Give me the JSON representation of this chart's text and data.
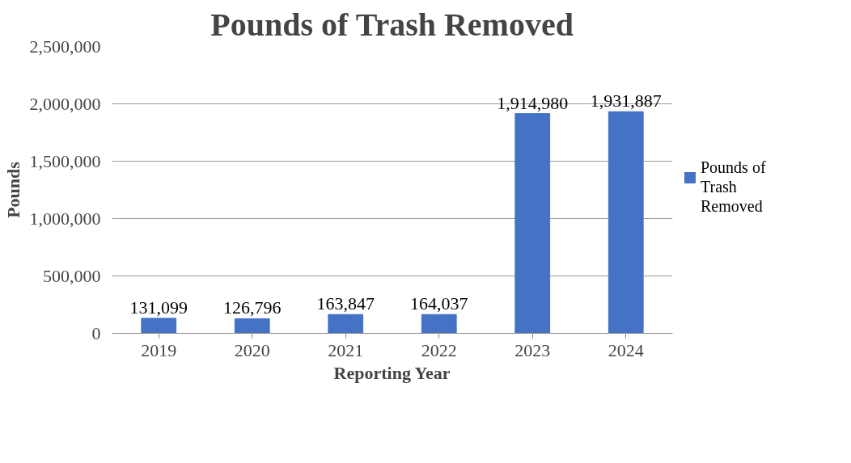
{
  "chart_data": {
    "type": "bar",
    "title": "Pounds of Trash Removed",
    "xlabel": "Reporting Year",
    "ylabel": "Pounds",
    "categories": [
      "2019",
      "2020",
      "2021",
      "2022",
      "2023",
      "2024"
    ],
    "series": [
      {
        "name": "Pounds of Trash Removed",
        "color": "#4472c4",
        "values": [
          131099,
          126796,
          163847,
          164037,
          1914980,
          1931887
        ]
      }
    ],
    "ylim": [
      0,
      2500000
    ],
    "yticks": [
      {
        "value": 0,
        "label": "0"
      },
      {
        "value": 500000,
        "label": "500,000"
      },
      {
        "value": 1000000,
        "label": "1,000,000"
      },
      {
        "value": 1500000,
        "label": "1,500,000"
      },
      {
        "value": 2000000,
        "label": "2,000,000"
      },
      {
        "value": 2500000,
        "label": "2,500,000"
      }
    ],
    "value_labels": [
      "131,099",
      "126,796",
      "163,847",
      "164,037",
      "1,914,980",
      "1,931,887"
    ],
    "grid": "y",
    "legend": "right"
  }
}
